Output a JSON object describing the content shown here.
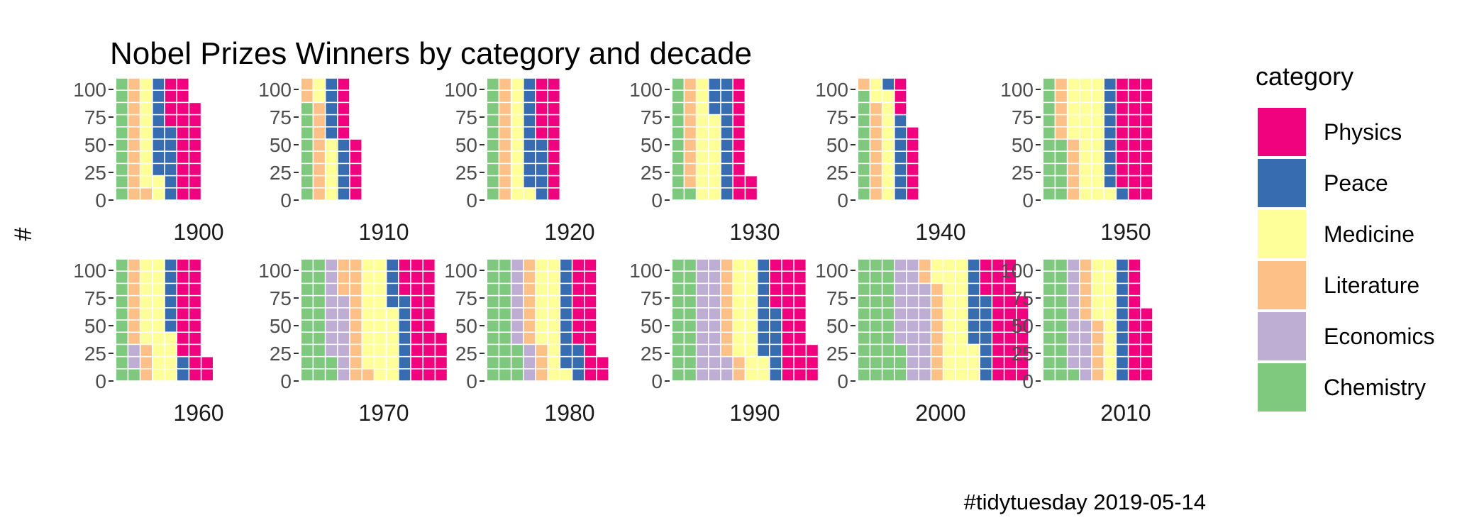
{
  "chart_data": {
    "type": "waffle",
    "title": "Nobel Prizes Winners by category and decade",
    "ylabel": "#",
    "caption": "#tidytuesday 2019-05-14",
    "ylim": [
      0,
      100
    ],
    "yticks": [
      "0",
      "25",
      "50",
      "75",
      "100"
    ],
    "legend": {
      "title": "category",
      "position": "right",
      "order": [
        "Physics",
        "Peace",
        "Medicine",
        "Literature",
        "Economics",
        "Chemistry"
      ]
    },
    "colors": {
      "Chemistry": "#7fc97f",
      "Economics": "#beaed4",
      "Literature": "#fdc086",
      "Medicine": "#ffff99",
      "Peace": "#386cb0",
      "Physics": "#f0027f"
    },
    "stack_order": [
      "Chemistry",
      "Economics",
      "Literature",
      "Medicine",
      "Peace",
      "Physics"
    ],
    "cells_per_column": 10,
    "panels": [
      {
        "decade": "1900",
        "values": {
          "Chemistry": 10,
          "Economics": 0,
          "Literature": 11,
          "Medicine": 11,
          "Peace": 14,
          "Physics": 22
        }
      },
      {
        "decade": "1910",
        "values": {
          "Chemistry": 8,
          "Economics": 0,
          "Literature": 10,
          "Medicine": 7,
          "Peace": 10,
          "Physics": 10
        }
      },
      {
        "decade": "1920",
        "values": {
          "Chemistry": 10,
          "Economics": 0,
          "Literature": 10,
          "Medicine": 11,
          "Peace": 14,
          "Physics": 15
        }
      },
      {
        "decade": "1930",
        "values": {
          "Chemistry": 11,
          "Economics": 0,
          "Literature": 9,
          "Medicine": 17,
          "Peace": 13,
          "Physics": 12
        }
      },
      {
        "decade": "1940",
        "values": {
          "Chemistry": 9,
          "Economics": 0,
          "Literature": 9,
          "Medicine": 11,
          "Peace": 8,
          "Physics": 9
        }
      },
      {
        "decade": "1950",
        "values": {
          "Chemistry": 15,
          "Economics": 0,
          "Literature": 10,
          "Medicine": 26,
          "Peace": 10,
          "Physics": 29
        }
      },
      {
        "decade": "1960",
        "values": {
          "Chemistry": 11,
          "Economics": 2,
          "Literature": 10,
          "Medicine": 21,
          "Peace": 8,
          "Physics": 20
        }
      },
      {
        "decade": "1970",
        "values": {
          "Chemistry": 22,
          "Economics": 15,
          "Literature": 14,
          "Medicine": 25,
          "Peace": 11,
          "Physics": 27
        }
      },
      {
        "decade": "1980",
        "values": {
          "Chemistry": 23,
          "Economics": 10,
          "Literature": 10,
          "Medicine": 18,
          "Peace": 12,
          "Physics": 19
        }
      },
      {
        "decade": "1990",
        "values": {
          "Chemistry": 20,
          "Economics": 22,
          "Literature": 10,
          "Medicine": 20,
          "Peace": 14,
          "Physics": 27
        }
      },
      {
        "decade": "2000",
        "values": {
          "Chemistry": 33,
          "Economics": 25,
          "Literature": 10,
          "Medicine": 25,
          "Peace": 14,
          "Physics": 30
        }
      },
      {
        "decade": "2010",
        "values": {
          "Chemistry": 21,
          "Economics": 14,
          "Literature": 10,
          "Medicine": 15,
          "Peace": 10,
          "Physics": 16
        }
      }
    ]
  }
}
